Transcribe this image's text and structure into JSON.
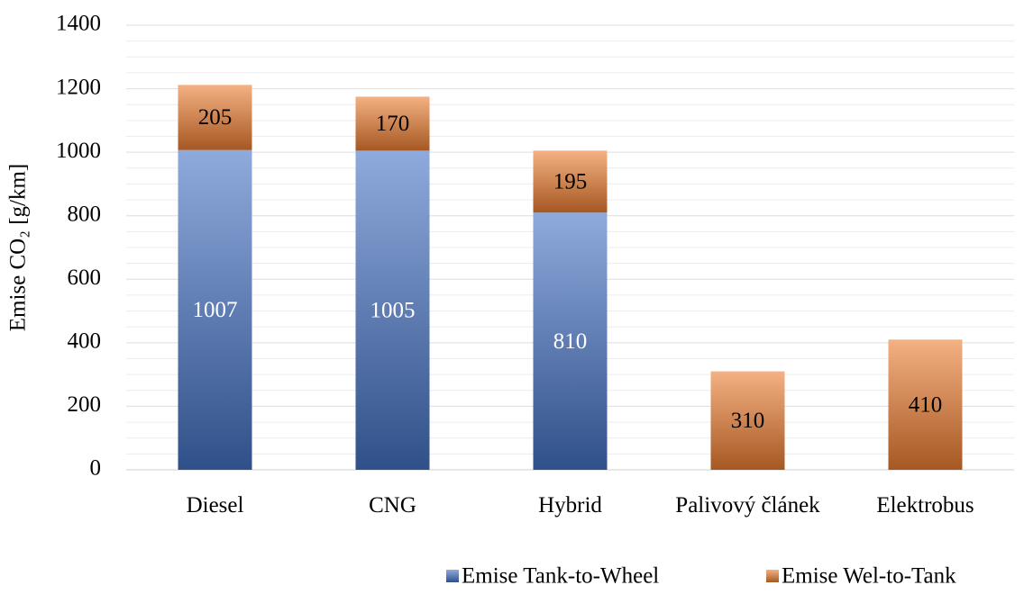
{
  "chart_data": {
    "type": "stacked_bar",
    "y_label": "Emise CO₂ [g/km]",
    "categories": [
      "Diesel",
      "CNG",
      "Hybrid",
      "Palivový článek",
      "Elektrobus"
    ],
    "series": [
      {
        "name": "Emise Tank-to-Wheel",
        "color": "#4472c4",
        "values": [
          1007,
          1005,
          810,
          null,
          null
        ]
      },
      {
        "name": "Emise Wel-to-Tank",
        "color": "#ed7d31",
        "values": [
          205,
          170,
          195,
          310,
          410
        ]
      }
    ],
    "ylim": [
      0,
      1400
    ],
    "yticks": [
      0,
      200,
      400,
      600,
      800,
      1000,
      1200,
      1400
    ],
    "grid": true,
    "legend": "bottom-right"
  }
}
